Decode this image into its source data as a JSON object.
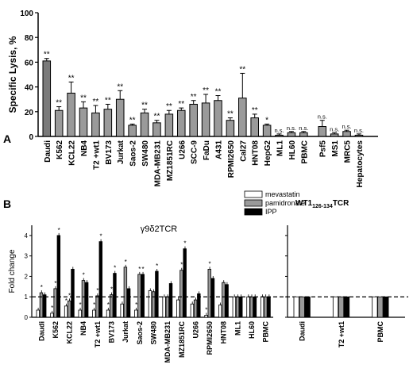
{
  "chart_data": [
    {
      "panel": "A",
      "type": "bar",
      "ylabel": "Specific Lysis, %",
      "ylim": [
        0,
        100
      ],
      "yticks": [
        0,
        20,
        40,
        60,
        80,
        100
      ],
      "bar_color": "#9a9a9a",
      "highlight_color": "#7a7a7a",
      "categories": [
        "Daudi",
        "K562",
        "KCL22",
        "NB4",
        "T2 +wt1",
        "BV173",
        "Jurkat",
        "Saos-2",
        "SW480",
        "MDA-MB231",
        "MZ1851RC",
        "U266",
        "SCC-9",
        "FaDu",
        "A431",
        "RPMI2650",
        "Cal27",
        "HNT08",
        "HepG2",
        "ML1",
        "HL60",
        "PBMC",
        "Psf5",
        "MS1",
        "MRC5",
        "Hepatocytes"
      ],
      "values": [
        61,
        21,
        35,
        23,
        19,
        22,
        30,
        9,
        19,
        11,
        18,
        21,
        26,
        27,
        29,
        13,
        31,
        15,
        9,
        1,
        3,
        3,
        8,
        2,
        4,
        1
      ],
      "errors": [
        2,
        3,
        9,
        5,
        6,
        4,
        7,
        1,
        3,
        2,
        3,
        2,
        3,
        7,
        4,
        2,
        20,
        3,
        1,
        1,
        1,
        1,
        5,
        1,
        1,
        1
      ],
      "significance": [
        "**",
        "**",
        "**",
        "**",
        "**",
        "**",
        "**",
        "**",
        "**",
        "**",
        "**",
        "**",
        "**",
        "**",
        "**",
        "**",
        "**",
        "**",
        "*",
        "n.s.",
        "n.s.",
        "n.s.",
        "n.s.",
        "n.s.",
        "n.s.",
        "n.s."
      ]
    },
    {
      "panel": "B",
      "type": "bar",
      "title": "γ9δ2TCR",
      "ylabel": "Fold change",
      "ylim": [
        0,
        4.5
      ],
      "yticks": [
        0,
        1,
        2,
        3,
        4
      ],
      "reference_line": 1,
      "categories": [
        "Daudi",
        "K562",
        "KCL22",
        "NB4",
        "T2 +wt1",
        "BV173",
        "Jurkat",
        "Saos-2",
        "SW480",
        "MDA-MB231",
        "MZ1851RC",
        "U266",
        "RPMI2650",
        "HNT08",
        "ML1",
        "HL60",
        "PBMC"
      ],
      "series": [
        {
          "name": "mevastatin",
          "color": "#ffffff",
          "values": [
            0.35,
            0.2,
            0.55,
            0.35,
            0.35,
            0.35,
            0.65,
            0.35,
            1.3,
            1.0,
            0.85,
            0.65,
            0.1,
            0.6,
            1.0,
            1.0,
            1.0
          ]
        },
        {
          "name": "pamidronate",
          "color": "#9a9a9a",
          "values": [
            1.2,
            1.4,
            0.8,
            1.8,
            1.05,
            1.1,
            2.45,
            2.1,
            1.25,
            1.0,
            2.3,
            0.85,
            2.35,
            1.7,
            1.0,
            1.0,
            1.0
          ]
        },
        {
          "name": "IPP",
          "color": "#000000",
          "values": [
            1.1,
            4.0,
            2.35,
            1.7,
            3.7,
            2.15,
            1.4,
            2.1,
            2.25,
            1.65,
            3.35,
            1.15,
            1.9,
            1.6,
            1.0,
            1.0,
            1.0
          ]
        }
      ],
      "stars": [
        [
          0,
          1,
          0
        ],
        [
          1,
          1,
          1
        ],
        [
          1,
          1,
          0
        ],
        [
          1,
          1,
          0
        ],
        [
          1,
          1,
          1
        ],
        [
          1,
          1,
          1
        ],
        [
          0,
          1,
          0
        ],
        [
          1,
          1,
          1
        ],
        [
          0,
          0,
          1
        ],
        [
          0,
          0,
          0
        ],
        [
          0,
          1,
          1
        ],
        [
          0,
          0,
          0
        ],
        [
          1,
          1,
          0
        ],
        [
          0,
          0,
          0
        ],
        [
          0,
          0,
          0
        ],
        [
          0,
          0,
          0
        ],
        [
          0,
          0,
          0
        ]
      ]
    },
    {
      "panel": "B2",
      "type": "bar",
      "title_main": "WT1",
      "title_sub": "126-134",
      "title_suffix": "TCR",
      "ylim": [
        0,
        4.5
      ],
      "reference_line": 1,
      "categories": [
        "Daudi",
        "T2 +wt1",
        "PBMC"
      ],
      "series": [
        {
          "name": "mevastatin",
          "values": [
            1.0,
            1.0,
            1.0
          ]
        },
        {
          "name": "pamidronate",
          "values": [
            1.0,
            1.0,
            1.0
          ]
        },
        {
          "name": "IPP",
          "values": [
            1.0,
            1.0,
            1.0
          ]
        }
      ]
    }
  ],
  "panel_labels": {
    "a": "A",
    "b": "B"
  },
  "legend": [
    "mevastatin",
    "pamidronate",
    "IPP"
  ]
}
